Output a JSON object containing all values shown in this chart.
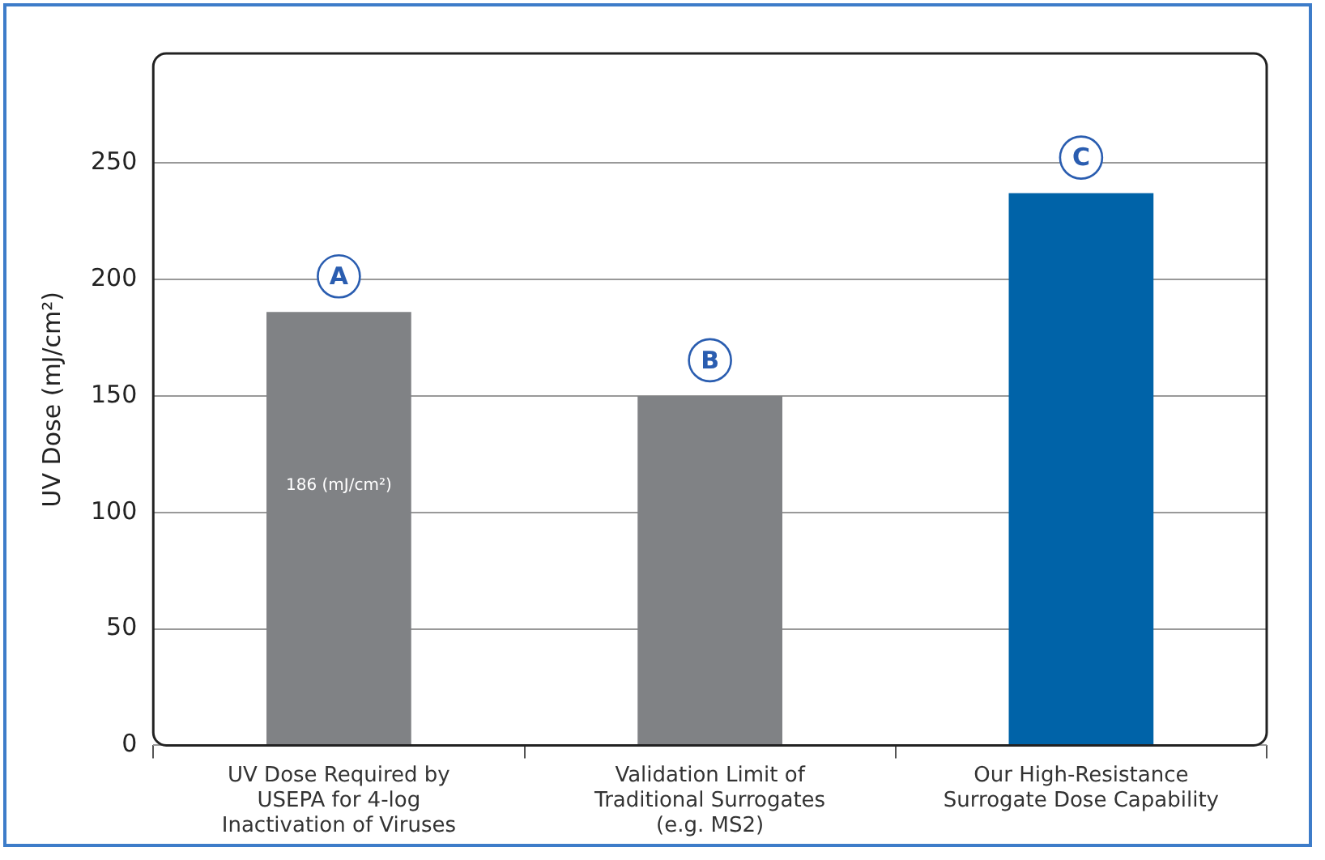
{
  "chart_data": {
    "type": "bar",
    "ylabel": "UV Dose (mJ/cm²)",
    "categories": [
      "UV Dose Required by USEPA for 4-log Inactivation of Viruses",
      "Validation Limit of Traditional Surrogates (e.g. MS2)",
      "Our High-Resistance Surrogate Dose Capability"
    ],
    "values": [
      186,
      150,
      237
    ],
    "colors": [
      "#808285",
      "#808285",
      "#0063a8"
    ],
    "value_labels": [
      "186 (mJ/cm²)",
      null,
      null
    ],
    "annotations": [
      {
        "text": "A",
        "x": "UV Dose Required by USEPA for 4-log Inactivation of Viruses",
        "y": 186
      },
      {
        "text": "B",
        "x": "Validation Limit of Traditional Surrogates (e.g. MS2)",
        "y": 150
      },
      {
        "text": "C",
        "x": "Our High-Resistance Surrogate Dose Capability",
        "y": 237
      }
    ],
    "ylim": [
      0,
      297
    ],
    "yticks": [
      0,
      50,
      100,
      150,
      200,
      250
    ],
    "grid": "y",
    "legend": false
  }
}
